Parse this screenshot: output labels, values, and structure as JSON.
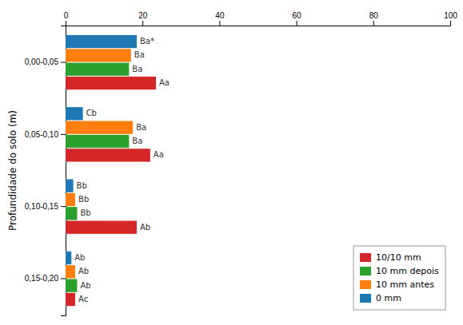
{
  "chart_data": {
    "type": "bar",
    "orientation": "horizontal",
    "y_label": "Profundidade do solo (m)",
    "categories": [
      "0,00-0,05",
      "0,05-0,10",
      "0,10-0,15",
      "0,15-0,20"
    ],
    "series": [
      {
        "name": "0 mm",
        "values": [
          18.5,
          4.5,
          2.0,
          1.5
        ],
        "value_labels": [
          "Ba*",
          "Cb",
          "Bb",
          "Ab"
        ]
      },
      {
        "name": "10 mm antes",
        "values": [
          17.0,
          17.5,
          2.5,
          2.5
        ],
        "value_labels": [
          "Ba",
          "Ba",
          "Bb",
          "Ab"
        ]
      },
      {
        "name": "10 mm depois",
        "values": [
          16.5,
          16.5,
          3.0,
          3.0
        ],
        "value_labels": [
          "Ba",
          "Ba",
          "Bb",
          "Ab"
        ]
      },
      {
        "name": "10/10 mm",
        "values": [
          23.5,
          22.0,
          18.5,
          2.5
        ],
        "value_labels": [
          "Aa",
          "Aa",
          "Ab",
          "Ac"
        ]
      }
    ],
    "xlim": [
      0,
      100
    ],
    "xticks": [
      0,
      20,
      40,
      60,
      80,
      100
    ],
    "grid": false,
    "legend": "lower right"
  }
}
